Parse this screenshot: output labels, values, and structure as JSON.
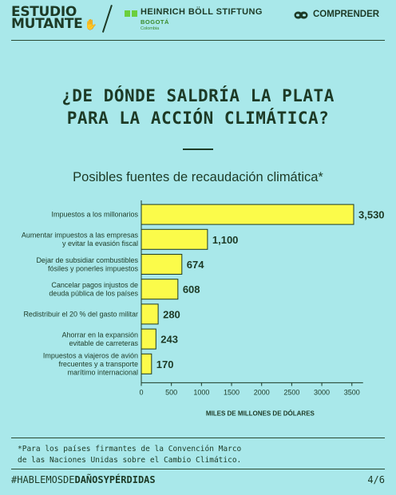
{
  "header": {
    "brand_line1": "ESTUDIO",
    "brand_line2": "MUTANTE",
    "partner_name": "HEINRICH BÖLL STIFTUNG",
    "partner_city": "BOGOTÁ",
    "partner_country": "Colombia",
    "section_label": "COMPRENDER"
  },
  "title_line1": "¿DE DÓNDE SALDRÍA LA PLATA",
  "title_line2": "PARA LA ACCIÓN CLIMÁTICA?",
  "chart_data": {
    "type": "bar",
    "orientation": "horizontal",
    "title": "Posibles fuentes de recaudación climática*",
    "xlabel": "MILES DE MILLONES DE DÓLARES",
    "xlim": [
      0,
      3500
    ],
    "xticks": [
      "0",
      "500",
      "1000",
      "1500",
      "2000",
      "2500",
      "3000",
      "3500"
    ],
    "bar_color": "#fbfb4a",
    "categories": [
      [
        "Impuestos a los millonarios"
      ],
      [
        "Aumentar impuestos a las empresas",
        "y evitar la evasión fiscal"
      ],
      [
        "Dejar de subsidiar combustibles",
        "fósiles y ponerles impuestos"
      ],
      [
        "Cancelar pagos injustos de",
        "deuda pública de los países"
      ],
      [
        "Redistribuir el 20 % del gasto militar"
      ],
      [
        "Ahorrar en la expansión",
        "evitable de carreteras"
      ],
      [
        "Impuestos a viajeros de avión",
        "frecuentes y a transporte",
        "marítimo internacional"
      ]
    ],
    "values": [
      3530,
      1100,
      674,
      608,
      280,
      243,
      170
    ],
    "value_labels": [
      "3,530",
      "1,100",
      "674",
      "608",
      "280",
      "243",
      "170"
    ]
  },
  "footnote_line1": "*Para los países firmantes de la Convención Marco",
  "footnote_line2": "de las Naciones Unidas sobre el Cambio Climático.",
  "footer": {
    "hashtag_prefix": "#HABLEMOSDE",
    "hashtag_bold": "DAÑOSYPÉRDIDAS",
    "page_indicator": "4/6"
  }
}
